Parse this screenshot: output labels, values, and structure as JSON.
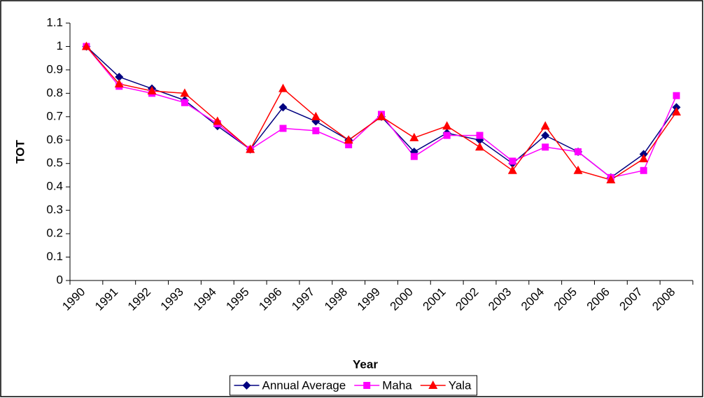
{
  "chart_data": {
    "type": "line",
    "x_label": "Year",
    "y_label": "TOT",
    "categories": [
      "1990",
      "1991",
      "1992",
      "1993",
      "1994",
      "1995",
      "1996",
      "1997",
      "1998",
      "1999",
      "2000",
      "2001",
      "2002",
      "2003",
      "2004",
      "2005",
      "2006",
      "2007",
      "2008"
    ],
    "series": [
      {
        "name": "Annual Average",
        "color": "#000080",
        "marker": "diamond",
        "values": [
          1.0,
          0.87,
          0.82,
          0.77,
          0.66,
          0.56,
          0.74,
          0.68,
          0.6,
          0.7,
          0.55,
          0.63,
          0.6,
          0.5,
          0.62,
          0.55,
          0.44,
          0.54,
          0.74
        ]
      },
      {
        "name": "Maha",
        "color": "#ff00ff",
        "marker": "square",
        "values": [
          1.0,
          0.83,
          0.8,
          0.76,
          0.67,
          0.56,
          0.65,
          0.64,
          0.58,
          0.71,
          0.53,
          0.62,
          0.62,
          0.51,
          0.57,
          0.55,
          0.44,
          0.47,
          0.79
        ]
      },
      {
        "name": "Yala",
        "color": "#ff0000",
        "marker": "triangle",
        "values": [
          1.0,
          0.84,
          0.81,
          0.8,
          0.68,
          0.56,
          0.82,
          0.7,
          0.6,
          0.7,
          0.61,
          0.66,
          0.57,
          0.47,
          0.66,
          0.47,
          0.43,
          0.52,
          0.72
        ]
      }
    ],
    "ylim": [
      0,
      1.1
    ],
    "yticks": [
      0,
      0.1,
      0.2,
      0.3,
      0.4,
      0.5,
      0.6,
      0.7,
      0.8,
      0.9,
      1,
      1.1
    ],
    "grid": false,
    "legend": "bottom"
  }
}
